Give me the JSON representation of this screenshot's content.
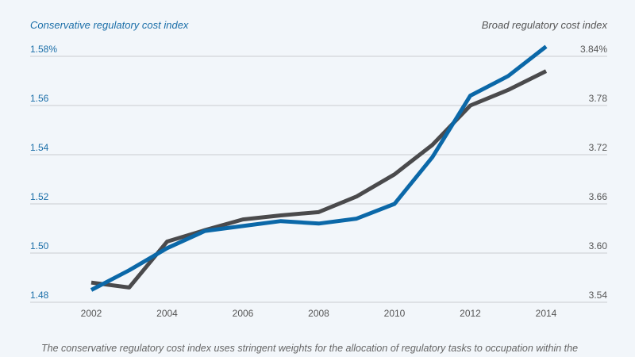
{
  "chart_data": {
    "type": "line",
    "title": "",
    "x": [
      2002,
      2003,
      2004,
      2005,
      2006,
      2007,
      2008,
      2009,
      2010,
      2011,
      2012,
      2013,
      2014
    ],
    "x_ticks": [
      "2002",
      "2004",
      "2006",
      "2008",
      "2010",
      "2012",
      "2014"
    ],
    "left_axis": {
      "label": "Conservative regulatory cost index",
      "ylim": [
        1.48,
        1.58
      ],
      "ticks": [
        "1.48",
        "1.50",
        "1.52",
        "1.54",
        "1.56",
        "1.58%"
      ],
      "color": "#1a6ea8"
    },
    "right_axis": {
      "label": "Broad regulatory cost index",
      "ylim": [
        3.54,
        3.84
      ],
      "ticks": [
        "3.54",
        "3.60",
        "3.66",
        "3.72",
        "3.78",
        "3.84%"
      ],
      "color": "#555555"
    },
    "series": [
      {
        "name": "Conservative regulatory cost index",
        "axis": "left",
        "color": "#0b68a8",
        "values": [
          1.485,
          1.493,
          1.502,
          1.509,
          1.511,
          1.513,
          1.512,
          1.514,
          1.52,
          1.539,
          1.564,
          1.572,
          1.584
        ]
      },
      {
        "name": "Broad regulatory cost index",
        "axis": "right",
        "color": "#4a4a4c",
        "values": [
          3.564,
          3.558,
          3.614,
          3.628,
          3.641,
          3.646,
          3.65,
          3.669,
          3.696,
          3.732,
          3.78,
          3.799,
          3.822
        ]
      }
    ],
    "grid": true
  },
  "caption": "The conservative regulatory cost index uses stringent weights for the allocation of regulatory tasks to occupation within the"
}
